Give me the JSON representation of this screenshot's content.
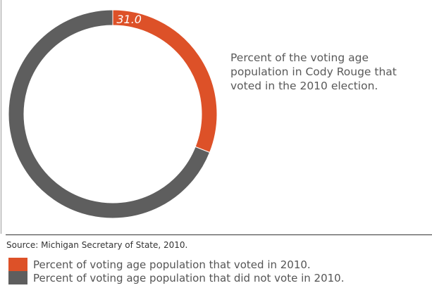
{
  "chart_data": {
    "type": "pie",
    "slices": [
      {
        "label": "Percent of voting age population that voted in 2010.",
        "value": 31.0,
        "color": "#dd5128",
        "data_label": "31.0"
      },
      {
        "label": "Percent of voting age population that did not vote in 2010.",
        "value": 69.0,
        "color": "#5e5e5e",
        "data_label": ""
      }
    ],
    "description": "Percent of the voting age population in Cody Rouge that voted in the 2010 election.",
    "source": "Source: Michigan Secretary of State, 2010.",
    "legend_position": "bottom-left"
  }
}
